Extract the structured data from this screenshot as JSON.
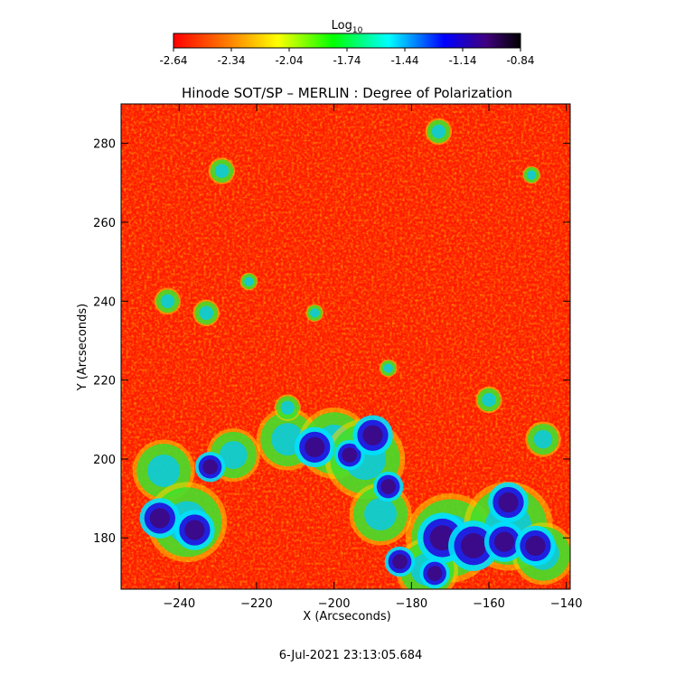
{
  "chart_data": {
    "type": "heatmap",
    "title": "Hinode SOT/SP – MERLIN : Degree of Polarization",
    "xlabel": "X (Arcseconds)",
    "ylabel": "Y (Arcseconds)",
    "xlim": [
      -255,
      -139
    ],
    "ylim": [
      167,
      290
    ],
    "x_ticks": [
      -240,
      -220,
      -200,
      -180,
      -160,
      -140
    ],
    "y_ticks": [
      180,
      200,
      220,
      240,
      260,
      280
    ],
    "colorbar": {
      "label_base": "Log",
      "label_sub": "10",
      "range": [
        -2.64,
        -0.84
      ],
      "ticks": [
        "-2.64",
        "-2.34",
        "-2.04",
        "-1.74",
        "-1.44",
        "-1.14",
        "-0.84"
      ],
      "colors": [
        "#ff0000",
        "#ff8000",
        "#ffff00",
        "#00ff00",
        "#00ffff",
        "#0000ff",
        "#400080",
        "#000000"
      ]
    },
    "strong_regions": [
      {
        "x": -245,
        "y": 185,
        "r": 4
      },
      {
        "x": -236,
        "y": 182,
        "r": 4
      },
      {
        "x": -232,
        "y": 198,
        "r": 3
      },
      {
        "x": -205,
        "y": 203,
        "r": 4
      },
      {
        "x": -196,
        "y": 201,
        "r": 3
      },
      {
        "x": -190,
        "y": 206,
        "r": 4
      },
      {
        "x": -186,
        "y": 193,
        "r": 3
      },
      {
        "x": -172,
        "y": 180,
        "r": 5
      },
      {
        "x": -164,
        "y": 178,
        "r": 5
      },
      {
        "x": -156,
        "y": 179,
        "r": 4
      },
      {
        "x": -155,
        "y": 189,
        "r": 4
      },
      {
        "x": -148,
        "y": 178,
        "r": 4
      },
      {
        "x": -174,
        "y": 171,
        "r": 3
      },
      {
        "x": -183,
        "y": 174,
        "r": 3
      }
    ],
    "moderate_regions": [
      {
        "x": -244,
        "y": 197,
        "r": 7
      },
      {
        "x": -238,
        "y": 184,
        "r": 9
      },
      {
        "x": -226,
        "y": 201,
        "r": 6
      },
      {
        "x": -212,
        "y": 205,
        "r": 7
      },
      {
        "x": -200,
        "y": 204,
        "r": 8
      },
      {
        "x": -192,
        "y": 200,
        "r": 9
      },
      {
        "x": -188,
        "y": 186,
        "r": 7
      },
      {
        "x": -170,
        "y": 180,
        "r": 10
      },
      {
        "x": -155,
        "y": 183,
        "r": 10
      },
      {
        "x": -146,
        "y": 176,
        "r": 7
      },
      {
        "x": -176,
        "y": 172,
        "r": 7
      },
      {
        "x": -243,
        "y": 240,
        "r": 3
      },
      {
        "x": -233,
        "y": 237,
        "r": 3
      },
      {
        "x": -229,
        "y": 273,
        "r": 3
      },
      {
        "x": -222,
        "y": 245,
        "r": 2
      },
      {
        "x": -205,
        "y": 237,
        "r": 2
      },
      {
        "x": -173,
        "y": 283,
        "r": 3
      },
      {
        "x": -149,
        "y": 272,
        "r": 2
      },
      {
        "x": -212,
        "y": 213,
        "r": 3
      },
      {
        "x": -186,
        "y": 223,
        "r": 2
      },
      {
        "x": -160,
        "y": 215,
        "r": 3
      },
      {
        "x": -146,
        "y": 205,
        "r": 4
      }
    ]
  },
  "footer": {
    "timestamp": "6-Jul-2021 23:13:05.684"
  }
}
